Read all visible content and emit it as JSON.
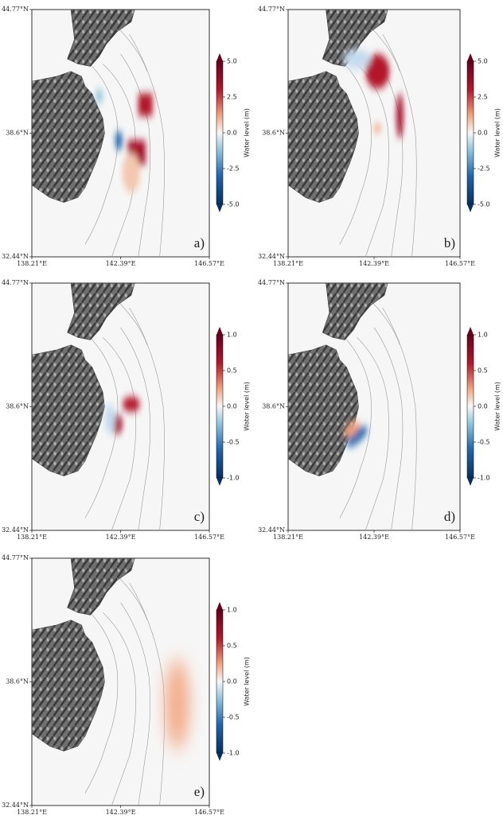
{
  "panels": [
    {
      "label": "a)",
      "lat_ticks": [
        {
          "value": 44.77,
          "label": "44.77°N"
        },
        {
          "value": 38.6,
          "label": "38.6°N"
        },
        {
          "value": 32.44,
          "label": "32.44°N"
        }
      ],
      "lon_ticks": [
        {
          "value": 138.21,
          "label": "138.21°E"
        },
        {
          "value": 142.39,
          "label": "142.39°E"
        },
        {
          "value": 146.57,
          "label": "146.57°E"
        }
      ],
      "colorbar": {
        "label": "Water level (m)",
        "lim": [
          -5,
          5
        ],
        "ticks": [
          {
            "value": 5,
            "label": "5.0"
          },
          2.5,
          {
            "value": 0,
            "label": "0.0"
          },
          -2.5,
          {
            "value": -5,
            "label": "-5.0"
          }
        ]
      }
    },
    {
      "label": "b)",
      "lat_ticks": [
        {
          "value": 44.77,
          "label": "44.77°N"
        },
        {
          "value": 38.6,
          "label": "38.6°N"
        },
        {
          "value": 32.44,
          "label": "32.44°N"
        }
      ],
      "lon_ticks": [
        {
          "value": 138.21,
          "label": "138.21°E"
        },
        {
          "value": 142.39,
          "label": "142.39°E"
        },
        {
          "value": 146.57,
          "label": "146.57°E"
        }
      ],
      "colorbar": {
        "label": "Water level (m)",
        "lim": [
          -5,
          5
        ],
        "ticks": [
          {
            "value": 5,
            "label": "5.0"
          },
          2.5,
          {
            "value": 0,
            "label": "0.0"
          },
          -2.5,
          {
            "value": -5,
            "label": "-5.0"
          }
        ]
      }
    },
    {
      "label": "c)",
      "lat_ticks": [
        {
          "value": 44.77,
          "label": "44.77°N"
        },
        {
          "value": 38.6,
          "label": "38.6°N"
        },
        {
          "value": 32.44,
          "label": "32.44°N"
        }
      ],
      "lon_ticks": [
        {
          "value": 138.21,
          "label": "138.21°E"
        },
        {
          "value": 142.39,
          "label": "142.39°E"
        },
        {
          "value": 146.57,
          "label": "146.57°E"
        }
      ],
      "colorbar": {
        "label": "Water level (m)",
        "lim": [
          -1,
          1
        ],
        "ticks": [
          {
            "value": 1,
            "label": "1.0"
          },
          0.5,
          {
            "value": 0,
            "label": "0.0"
          },
          -0.5,
          {
            "value": -1,
            "label": "-1.0"
          }
        ]
      }
    },
    {
      "label": "d)",
      "lat_ticks": [
        {
          "value": 44.77,
          "label": "44.77°N"
        },
        {
          "value": 38.6,
          "label": "38.6°N"
        },
        {
          "value": 32.44,
          "label": "32.44°N"
        }
      ],
      "lon_ticks": [
        {
          "value": 138.21,
          "label": "138.21°E"
        },
        {
          "value": 142.39,
          "label": "142.39°E"
        },
        {
          "value": 146.57,
          "label": "146.57°E"
        }
      ],
      "colorbar": {
        "label": "Water level (m)",
        "lim": [
          -1,
          1
        ],
        "ticks": [
          {
            "value": 1,
            "label": "1.0"
          },
          0.5,
          {
            "value": 0,
            "label": "0.0"
          },
          -0.5,
          {
            "value": -1,
            "label": "-1.0"
          }
        ]
      }
    },
    {
      "label": "e)",
      "lat_ticks": [
        {
          "value": 44.77,
          "label": "44.77°N"
        },
        {
          "value": 38.6,
          "label": "38.6°N"
        },
        {
          "value": 32.44,
          "label": "32.44°N"
        }
      ],
      "lon_ticks": [
        {
          "value": 138.21,
          "label": "138.21°E"
        },
        {
          "value": 142.39,
          "label": "142.39°E"
        },
        {
          "value": 146.57,
          "label": "146.57°E"
        }
      ],
      "colorbar": {
        "label": "Water level (m)",
        "lim": [
          -1,
          1
        ],
        "ticks": [
          {
            "value": 1,
            "label": "1.0"
          },
          0.5,
          {
            "value": 0,
            "label": "0.0"
          },
          -0.5,
          {
            "value": -1,
            "label": "-1.0"
          }
        ]
      }
    }
  ]
}
